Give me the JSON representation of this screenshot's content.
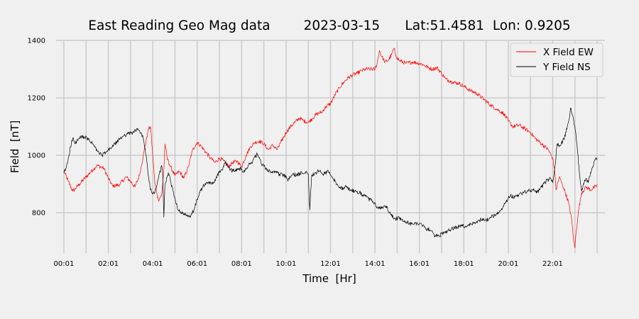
{
  "colors": {
    "background": "#f0f0f0",
    "grid": "#cbcbcb",
    "x_field": "#ff0000",
    "y_field": "#000000"
  },
  "chart_data": {
    "type": "line",
    "title": "East Reading Geo Mag data        2023-03-15      Lat:51.4581  Lon: 0.9205",
    "xlabel": "Time  [Hr]",
    "ylabel": "Field  [nT]",
    "x_unit": "hours",
    "xlim": [
      -0.35,
      24.35
    ],
    "ylim": [
      660,
      1400
    ],
    "grid": true,
    "legend_position": "top-right",
    "x_ticks": [
      {
        "x": 0,
        "label": "00:01"
      },
      {
        "x": 2,
        "label": "02:01"
      },
      {
        "x": 4,
        "label": "04:01"
      },
      {
        "x": 6,
        "label": "06:01"
      },
      {
        "x": 8,
        "label": "08:01"
      },
      {
        "x": 10,
        "label": "10:01"
      },
      {
        "x": 12,
        "label": "12:01"
      },
      {
        "x": 14,
        "label": "14:01"
      },
      {
        "x": 16,
        "label": "16:01"
      },
      {
        "x": 18,
        "label": "18:01"
      },
      {
        "x": 20,
        "label": "20:01"
      },
      {
        "x": 22,
        "label": "22:01"
      }
    ],
    "minor_x_grid": [
      1,
      3,
      5,
      7,
      9,
      11,
      13,
      15,
      17,
      19,
      21,
      23,
      24
    ],
    "y_ticks": [
      {
        "y": 800,
        "label": "800"
      },
      {
        "y": 1000,
        "label": "1000"
      },
      {
        "y": 1200,
        "label": "1200"
      },
      {
        "y": 1400,
        "label": "1400"
      }
    ],
    "series": [
      {
        "name": "X Field EW",
        "color": "#ff0000",
        "points": [
          [
            0,
            945
          ],
          [
            0.2,
            910
          ],
          [
            0.4,
            875
          ],
          [
            0.7,
            900
          ],
          [
            1.0,
            925
          ],
          [
            1.3,
            950
          ],
          [
            1.5,
            965
          ],
          [
            1.8,
            955
          ],
          [
            2.0,
            920
          ],
          [
            2.2,
            893
          ],
          [
            2.5,
            898
          ],
          [
            2.8,
            925
          ],
          [
            3.0,
            910
          ],
          [
            3.2,
            890
          ],
          [
            3.4,
            930
          ],
          [
            3.6,
            1010
          ],
          [
            3.8,
            1090
          ],
          [
            3.9,
            1100
          ],
          [
            4.0,
            1000
          ],
          [
            4.1,
            900
          ],
          [
            4.25,
            845
          ],
          [
            4.4,
            860
          ],
          [
            4.5,
            950
          ],
          [
            4.55,
            1040
          ],
          [
            4.65,
            990
          ],
          [
            4.8,
            960
          ],
          [
            5.0,
            930
          ],
          [
            5.2,
            945
          ],
          [
            5.4,
            920
          ],
          [
            5.6,
            960
          ],
          [
            5.8,
            1020
          ],
          [
            6.0,
            1045
          ],
          [
            6.2,
            1030
          ],
          [
            6.4,
            1010
          ],
          [
            6.6,
            990
          ],
          [
            6.8,
            975
          ],
          [
            7.0,
            990
          ],
          [
            7.2,
            980
          ],
          [
            7.4,
            960
          ],
          [
            7.6,
            975
          ],
          [
            7.8,
            980
          ],
          [
            8.0,
            960
          ],
          [
            8.2,
            1000
          ],
          [
            8.4,
            1030
          ],
          [
            8.6,
            1045
          ],
          [
            8.8,
            1050
          ],
          [
            9.0,
            1040
          ],
          [
            9.2,
            1020
          ],
          [
            9.4,
            1035
          ],
          [
            9.6,
            1020
          ],
          [
            9.8,
            1050
          ],
          [
            10.0,
            1080
          ],
          [
            10.2,
            1100
          ],
          [
            10.4,
            1115
          ],
          [
            10.6,
            1130
          ],
          [
            10.8,
            1120
          ],
          [
            11.0,
            1115
          ],
          [
            11.2,
            1130
          ],
          [
            11.4,
            1145
          ],
          [
            11.6,
            1150
          ],
          [
            11.8,
            1170
          ],
          [
            12.0,
            1180
          ],
          [
            12.2,
            1210
          ],
          [
            12.4,
            1235
          ],
          [
            12.6,
            1255
          ],
          [
            12.8,
            1270
          ],
          [
            13.0,
            1280
          ],
          [
            13.2,
            1285
          ],
          [
            13.4,
            1295
          ],
          [
            13.6,
            1300
          ],
          [
            13.8,
            1300
          ],
          [
            14.0,
            1300
          ],
          [
            14.1,
            1320
          ],
          [
            14.2,
            1365
          ],
          [
            14.3,
            1345
          ],
          [
            14.45,
            1325
          ],
          [
            14.6,
            1330
          ],
          [
            14.75,
            1350
          ],
          [
            14.85,
            1372
          ],
          [
            14.95,
            1345
          ],
          [
            15.1,
            1330
          ],
          [
            15.4,
            1320
          ],
          [
            15.7,
            1325
          ],
          [
            16.0,
            1320
          ],
          [
            16.2,
            1315
          ],
          [
            16.4,
            1305
          ],
          [
            16.6,
            1300
          ],
          [
            16.8,
            1305
          ],
          [
            17.0,
            1285
          ],
          [
            17.2,
            1265
          ],
          [
            17.5,
            1255
          ],
          [
            17.8,
            1250
          ],
          [
            18.0,
            1240
          ],
          [
            18.3,
            1225
          ],
          [
            18.6,
            1215
          ],
          [
            18.9,
            1195
          ],
          [
            19.2,
            1175
          ],
          [
            19.5,
            1160
          ],
          [
            19.8,
            1145
          ],
          [
            20.0,
            1120
          ],
          [
            20.2,
            1100
          ],
          [
            20.5,
            1105
          ],
          [
            20.8,
            1090
          ],
          [
            21.0,
            1080
          ],
          [
            21.2,
            1060
          ],
          [
            21.5,
            1040
          ],
          [
            21.8,
            1020
          ],
          [
            22.0,
            990
          ],
          [
            22.1,
            940
          ],
          [
            22.15,
            880
          ],
          [
            22.3,
            925
          ],
          [
            22.5,
            885
          ],
          [
            22.7,
            840
          ],
          [
            22.85,
            780
          ],
          [
            22.95,
            700
          ],
          [
            23.0,
            678
          ],
          [
            23.05,
            730
          ],
          [
            23.15,
            800
          ],
          [
            23.3,
            870
          ],
          [
            23.5,
            890
          ],
          [
            23.7,
            880
          ],
          [
            24.0,
            895
          ]
        ]
      },
      {
        "name": "Y Field NS",
        "color": "#000000",
        "points": [
          [
            0,
            940
          ],
          [
            0.1,
            955
          ],
          [
            0.2,
            990
          ],
          [
            0.3,
            1030
          ],
          [
            0.4,
            1060
          ],
          [
            0.5,
            1040
          ],
          [
            0.7,
            1060
          ],
          [
            0.9,
            1065
          ],
          [
            1.1,
            1055
          ],
          [
            1.3,
            1040
          ],
          [
            1.5,
            1015
          ],
          [
            1.7,
            1000
          ],
          [
            1.9,
            1010
          ],
          [
            2.1,
            1025
          ],
          [
            2.3,
            1040
          ],
          [
            2.5,
            1055
          ],
          [
            2.7,
            1070
          ],
          [
            2.9,
            1075
          ],
          [
            3.1,
            1080
          ],
          [
            3.3,
            1090
          ],
          [
            3.5,
            1075
          ],
          [
            3.6,
            1050
          ],
          [
            3.7,
            1000
          ],
          [
            3.8,
            930
          ],
          [
            3.9,
            880
          ],
          [
            4.0,
            865
          ],
          [
            4.1,
            875
          ],
          [
            4.2,
            900
          ],
          [
            4.3,
            935
          ],
          [
            4.4,
            965
          ],
          [
            4.45,
            930
          ],
          [
            4.5,
            785
          ],
          [
            4.55,
            900
          ],
          [
            4.7,
            940
          ],
          [
            4.9,
            880
          ],
          [
            5.1,
            820
          ],
          [
            5.3,
            800
          ],
          [
            5.5,
            790
          ],
          [
            5.7,
            785
          ],
          [
            5.9,
            820
          ],
          [
            6.1,
            870
          ],
          [
            6.3,
            895
          ],
          [
            6.5,
            905
          ],
          [
            6.7,
            900
          ],
          [
            6.9,
            930
          ],
          [
            7.1,
            950
          ],
          [
            7.3,
            975
          ],
          [
            7.5,
            950
          ],
          [
            7.7,
            945
          ],
          [
            7.9,
            955
          ],
          [
            8.1,
            945
          ],
          [
            8.3,
            965
          ],
          [
            8.5,
            980
          ],
          [
            8.7,
            1005
          ],
          [
            8.9,
            970
          ],
          [
            9.1,
            955
          ],
          [
            9.3,
            940
          ],
          [
            9.5,
            945
          ],
          [
            9.7,
            935
          ],
          [
            9.9,
            930
          ],
          [
            10.1,
            915
          ],
          [
            10.3,
            935
          ],
          [
            10.5,
            930
          ],
          [
            10.7,
            940
          ],
          [
            10.9,
            945
          ],
          [
            11.0,
            935
          ],
          [
            11.07,
            810
          ],
          [
            11.15,
            930
          ],
          [
            11.3,
            940
          ],
          [
            11.5,
            945
          ],
          [
            11.7,
            935
          ],
          [
            11.9,
            945
          ],
          [
            12.1,
            920
          ],
          [
            12.3,
            900
          ],
          [
            12.5,
            885
          ],
          [
            12.7,
            890
          ],
          [
            12.9,
            880
          ],
          [
            13.1,
            875
          ],
          [
            13.3,
            870
          ],
          [
            13.5,
            860
          ],
          [
            13.7,
            850
          ],
          [
            13.9,
            840
          ],
          [
            14.1,
            820
          ],
          [
            14.3,
            815
          ],
          [
            14.5,
            825
          ],
          [
            14.7,
            795
          ],
          [
            14.9,
            780
          ],
          [
            15.1,
            780
          ],
          [
            15.3,
            770
          ],
          [
            15.5,
            765
          ],
          [
            15.7,
            760
          ],
          [
            15.9,
            765
          ],
          [
            16.1,
            760
          ],
          [
            16.3,
            745
          ],
          [
            16.5,
            740
          ],
          [
            16.7,
            720
          ],
          [
            16.9,
            720
          ],
          [
            17.1,
            730
          ],
          [
            17.3,
            740
          ],
          [
            17.5,
            745
          ],
          [
            17.7,
            750
          ],
          [
            17.9,
            755
          ],
          [
            18.1,
            750
          ],
          [
            18.3,
            760
          ],
          [
            18.5,
            765
          ],
          [
            18.7,
            775
          ],
          [
            18.9,
            780
          ],
          [
            19.1,
            775
          ],
          [
            19.3,
            790
          ],
          [
            19.5,
            795
          ],
          [
            19.7,
            815
          ],
          [
            19.9,
            840
          ],
          [
            20.1,
            860
          ],
          [
            20.3,
            855
          ],
          [
            20.5,
            865
          ],
          [
            20.7,
            870
          ],
          [
            20.9,
            875
          ],
          [
            21.1,
            880
          ],
          [
            21.3,
            870
          ],
          [
            21.5,
            890
          ],
          [
            21.7,
            910
          ],
          [
            21.9,
            920
          ],
          [
            22.0,
            905
          ],
          [
            22.1,
            960
          ],
          [
            22.2,
            1040
          ],
          [
            22.3,
            1030
          ],
          [
            22.45,
            1050
          ],
          [
            22.6,
            1080
          ],
          [
            22.75,
            1130
          ],
          [
            22.8,
            1165
          ],
          [
            22.9,
            1140
          ],
          [
            23.0,
            1100
          ],
          [
            23.1,
            1030
          ],
          [
            23.2,
            940
          ],
          [
            23.3,
            875
          ],
          [
            23.4,
            900
          ],
          [
            23.5,
            920
          ],
          [
            23.6,
            905
          ],
          [
            23.7,
            940
          ],
          [
            23.8,
            960
          ],
          [
            23.9,
            985
          ],
          [
            24.0,
            990
          ]
        ]
      }
    ]
  }
}
